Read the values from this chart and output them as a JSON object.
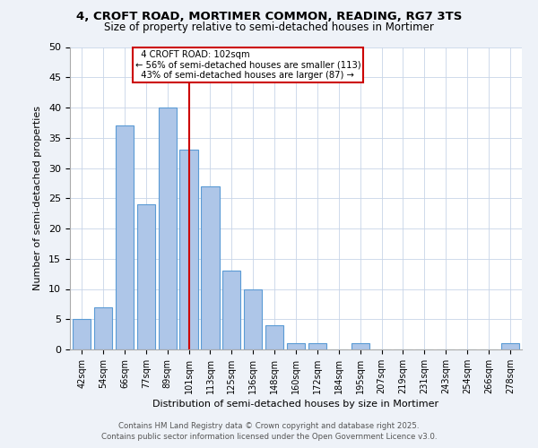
{
  "title_line1": "4, CROFT ROAD, MORTIMER COMMON, READING, RG7 3TS",
  "title_line2": "Size of property relative to semi-detached houses in Mortimer",
  "xlabel": "Distribution of semi-detached houses by size in Mortimer",
  "ylabel": "Number of semi-detached properties",
  "categories": [
    "42sqm",
    "54sqm",
    "66sqm",
    "77sqm",
    "89sqm",
    "101sqm",
    "113sqm",
    "125sqm",
    "136sqm",
    "148sqm",
    "160sqm",
    "172sqm",
    "184sqm",
    "195sqm",
    "207sqm",
    "219sqm",
    "231sqm",
    "243sqm",
    "254sqm",
    "266sqm",
    "278sqm"
  ],
  "values": [
    5,
    7,
    37,
    24,
    40,
    33,
    27,
    13,
    10,
    4,
    1,
    1,
    0,
    1,
    0,
    0,
    0,
    0,
    0,
    0,
    1
  ],
  "bar_color": "#aec6e8",
  "bar_edge_color": "#5b9bd5",
  "property_label": "4 CROFT ROAD: 102sqm",
  "vline_bin": "101sqm",
  "pct_smaller": 56,
  "pct_larger": 43,
  "n_smaller": 113,
  "n_larger": 87,
  "vline_color": "#cc0000",
  "annotation_box_color": "#cc0000",
  "ylim": [
    0,
    50
  ],
  "yticks": [
    0,
    5,
    10,
    15,
    20,
    25,
    30,
    35,
    40,
    45,
    50
  ],
  "footnote_line1": "Contains HM Land Registry data © Crown copyright and database right 2025.",
  "footnote_line2": "Contains public sector information licensed under the Open Government Licence v3.0.",
  "background_color": "#eef2f8",
  "plot_bg_color": "#ffffff",
  "grid_color": "#c8d4e8"
}
